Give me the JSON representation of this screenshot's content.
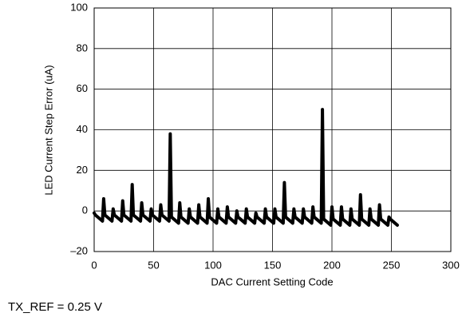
{
  "chart_data": {
    "type": "line",
    "x_label": "DAC Current Setting Code",
    "y_label": "LED Current Step Error (uA)",
    "annotation": "TX_REF = 0.25 V",
    "x": [
      0,
      1,
      7,
      8,
      9,
      15,
      16,
      17,
      23,
      24,
      25,
      31,
      32,
      33,
      39,
      40,
      41,
      47,
      48,
      49,
      55,
      56,
      57,
      63,
      64,
      65,
      71,
      72,
      73,
      79,
      80,
      81,
      87,
      88,
      89,
      95,
      96,
      97,
      103,
      104,
      105,
      111,
      112,
      113,
      119,
      120,
      121,
      127,
      128,
      129,
      135,
      136,
      137,
      143,
      144,
      145,
      151,
      152,
      153,
      159,
      160,
      161,
      167,
      168,
      169,
      175,
      176,
      177,
      183,
      184,
      185,
      191,
      192,
      193,
      199,
      200,
      201,
      207,
      208,
      209,
      215,
      216,
      217,
      223,
      224,
      225,
      231,
      232,
      233,
      239,
      240,
      241,
      247,
      248,
      249,
      255
    ],
    "series": [
      {
        "name": "LED Current Step Error",
        "color": "#000000",
        "values": [
          -1,
          -2,
          -5,
          6,
          -2,
          -5,
          1,
          -2,
          -5,
          5,
          -2,
          -5,
          13,
          -2,
          -5,
          4,
          -2,
          -5,
          1,
          -2,
          -5,
          3,
          -2,
          -5,
          38,
          -3,
          -6,
          4,
          -3,
          -6,
          1,
          -3,
          -6,
          3,
          -3,
          -6,
          6,
          -3,
          -6,
          1,
          -3,
          -6,
          2,
          -3,
          -6,
          0,
          -3,
          -6,
          1,
          -3,
          -6,
          -1,
          -3,
          -6,
          1,
          -3,
          -6,
          1,
          -3,
          -6,
          14,
          -3,
          -6,
          1,
          -3,
          -6,
          1,
          -3,
          -6,
          2,
          -3,
          -6,
          50,
          -4,
          -7,
          2,
          -4,
          -7,
          2,
          -4,
          -7,
          1,
          -4,
          -7,
          8,
          -4,
          -7,
          1,
          -4,
          -7,
          3,
          -4,
          -7,
          -3,
          -4,
          -7
        ]
      }
    ],
    "xlim": [
      0,
      300
    ],
    "xticks": [
      0,
      50,
      100,
      150,
      200,
      250,
      300
    ],
    "ylim": [
      -20,
      100
    ],
    "yticks": [
      {
        "value": -20,
        "label": "–20"
      },
      0,
      20,
      40,
      60,
      80,
      100
    ],
    "grid": true
  }
}
